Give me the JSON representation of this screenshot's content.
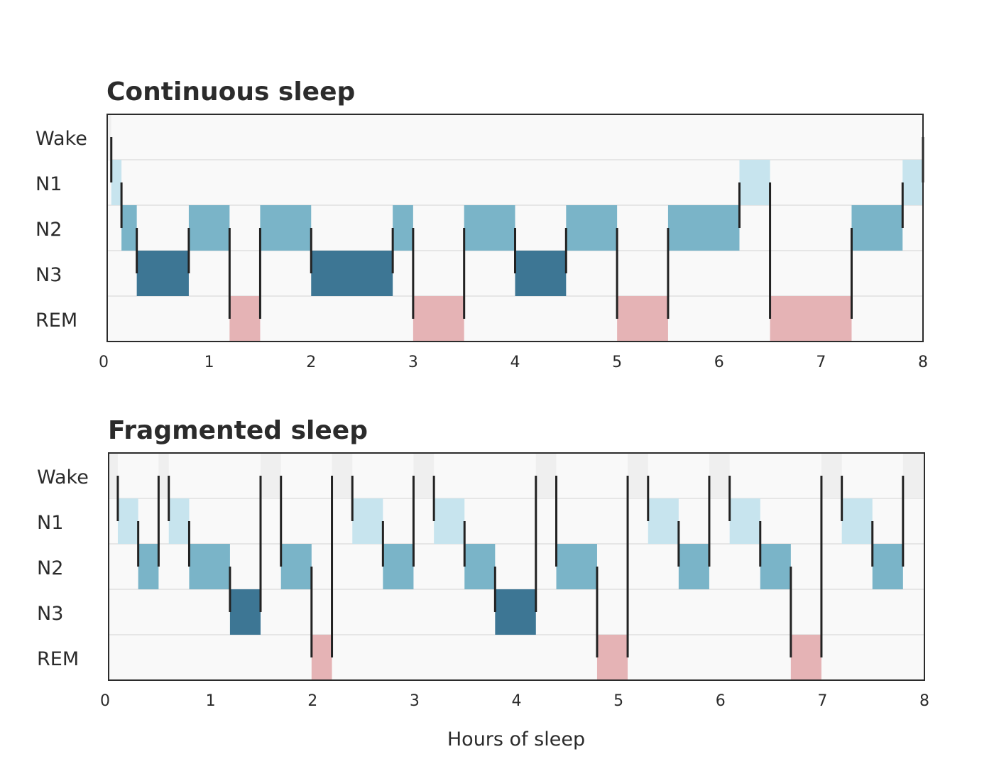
{
  "chart_data": [
    {
      "type": "hypnogram",
      "title": "Continuous sleep",
      "stages": [
        "Wake",
        "N1",
        "N2",
        "N3",
        "REM"
      ],
      "xlim": [
        0,
        8
      ],
      "xticks": [
        0,
        1,
        2,
        3,
        4,
        5,
        6,
        7,
        8
      ],
      "epochs": [
        {
          "stage": "Wake",
          "start": 0.0,
          "end": 0.04
        },
        {
          "stage": "N1",
          "start": 0.04,
          "end": 0.14
        },
        {
          "stage": "N2",
          "start": 0.14,
          "end": 0.29
        },
        {
          "stage": "N3",
          "start": 0.29,
          "end": 0.8
        },
        {
          "stage": "N2",
          "start": 0.8,
          "end": 1.2
        },
        {
          "stage": "REM",
          "start": 1.2,
          "end": 1.5
        },
        {
          "stage": "N2",
          "start": 1.5,
          "end": 2.0
        },
        {
          "stage": "N3",
          "start": 2.0,
          "end": 2.8
        },
        {
          "stage": "N2",
          "start": 2.8,
          "end": 3.0
        },
        {
          "stage": "REM",
          "start": 3.0,
          "end": 3.5
        },
        {
          "stage": "N2",
          "start": 3.5,
          "end": 4.0
        },
        {
          "stage": "N3",
          "start": 4.0,
          "end": 4.5
        },
        {
          "stage": "N2",
          "start": 4.5,
          "end": 5.0
        },
        {
          "stage": "REM",
          "start": 5.0,
          "end": 5.5
        },
        {
          "stage": "N2",
          "start": 5.5,
          "end": 6.2
        },
        {
          "stage": "N1",
          "start": 6.2,
          "end": 6.5
        },
        {
          "stage": "REM",
          "start": 6.5,
          "end": 7.3
        },
        {
          "stage": "N2",
          "start": 7.3,
          "end": 7.8
        },
        {
          "stage": "N1",
          "start": 7.8,
          "end": 8.0
        },
        {
          "stage": "Wake",
          "start": 8.0,
          "end": 8.0
        }
      ]
    },
    {
      "type": "hypnogram",
      "title": "Fragmented sleep",
      "stages": [
        "Wake",
        "N1",
        "N2",
        "N3",
        "REM"
      ],
      "xlim": [
        0,
        8
      ],
      "xticks": [
        0,
        1,
        2,
        3,
        4,
        5,
        6,
        7,
        8
      ],
      "xlabel": "Hours of sleep",
      "epochs": [
        {
          "stage": "Wake",
          "start": 0.0,
          "end": 0.09
        },
        {
          "stage": "N1",
          "start": 0.09,
          "end": 0.29
        },
        {
          "stage": "N2",
          "start": 0.29,
          "end": 0.49
        },
        {
          "stage": "Wake",
          "start": 0.49,
          "end": 0.59
        },
        {
          "stage": "N1",
          "start": 0.59,
          "end": 0.79
        },
        {
          "stage": "N2",
          "start": 0.79,
          "end": 1.19
        },
        {
          "stage": "N3",
          "start": 1.19,
          "end": 1.49
        },
        {
          "stage": "Wake",
          "start": 1.49,
          "end": 1.69
        },
        {
          "stage": "N2",
          "start": 1.69,
          "end": 1.99
        },
        {
          "stage": "REM",
          "start": 1.99,
          "end": 2.19
        },
        {
          "stage": "Wake",
          "start": 2.19,
          "end": 2.39
        },
        {
          "stage": "N1",
          "start": 2.39,
          "end": 2.69
        },
        {
          "stage": "N2",
          "start": 2.69,
          "end": 2.99
        },
        {
          "stage": "Wake",
          "start": 2.99,
          "end": 3.19
        },
        {
          "stage": "N1",
          "start": 3.19,
          "end": 3.49
        },
        {
          "stage": "N2",
          "start": 3.49,
          "end": 3.79
        },
        {
          "stage": "N3",
          "start": 3.79,
          "end": 4.19
        },
        {
          "stage": "Wake",
          "start": 4.19,
          "end": 4.39
        },
        {
          "stage": "N2",
          "start": 4.39,
          "end": 4.79
        },
        {
          "stage": "REM",
          "start": 4.79,
          "end": 5.09
        },
        {
          "stage": "Wake",
          "start": 5.09,
          "end": 5.29
        },
        {
          "stage": "N1",
          "start": 5.29,
          "end": 5.59
        },
        {
          "stage": "N2",
          "start": 5.59,
          "end": 5.89
        },
        {
          "stage": "Wake",
          "start": 5.89,
          "end": 6.09
        },
        {
          "stage": "N1",
          "start": 6.09,
          "end": 6.39
        },
        {
          "stage": "N2",
          "start": 6.39,
          "end": 6.69
        },
        {
          "stage": "REM",
          "start": 6.69,
          "end": 6.99
        },
        {
          "stage": "Wake",
          "start": 6.99,
          "end": 7.19
        },
        {
          "stage": "N1",
          "start": 7.19,
          "end": 7.49
        },
        {
          "stage": "N2",
          "start": 7.49,
          "end": 7.79
        },
        {
          "stage": "Wake",
          "start": 7.79,
          "end": 8.0
        }
      ]
    }
  ],
  "colors": {
    "Wake": "#efefef",
    "N1": "#c7e4ee",
    "N2": "#7ab4c8",
    "N3": "#3d7694",
    "REM": "#e5b3b5",
    "lane_background": "#f9f9f9",
    "transition_line": "#222222",
    "frame": "#2b2b2b",
    "lane_divider": "#d4d4d4"
  }
}
